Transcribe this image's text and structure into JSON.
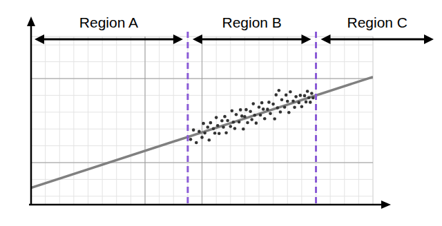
{
  "chart_data": {
    "type": "scatter",
    "xlim": [
      0,
      12
    ],
    "ylim": [
      0,
      10
    ],
    "xticks": [
      4,
      6
    ],
    "yticks": [
      2.5,
      7.5
    ],
    "grid": true,
    "tick_labels": false,
    "regions": [
      "Region A",
      "Region B",
      "Region C"
    ],
    "boundaries": {
      "values": [
        5.5,
        10
      ],
      "color": "#8a5bd6",
      "line_style": "dashed"
    },
    "series": [
      {
        "type": "scatter",
        "color": "#333333",
        "marker": "circle",
        "x": [
          5.6,
          5.7,
          5.8,
          5.9,
          6.0,
          6.05,
          6.1,
          6.2,
          6.25,
          6.3,
          6.4,
          6.45,
          6.5,
          6.55,
          6.6,
          6.7,
          6.75,
          6.8,
          6.85,
          6.9,
          7.0,
          7.05,
          7.1,
          7.15,
          7.2,
          7.3,
          7.35,
          7.4,
          7.45,
          7.5,
          7.55,
          7.6,
          7.7,
          7.75,
          7.8,
          7.85,
          7.9,
          8.0,
          8.05,
          8.1,
          8.15,
          8.2,
          8.3,
          8.35,
          8.4,
          8.5,
          8.55,
          8.6,
          8.65,
          8.7,
          8.75,
          8.8,
          8.9,
          8.95,
          9.0,
          9.05,
          9.1,
          9.2,
          9.25,
          9.3,
          9.4,
          9.45,
          9.5,
          9.6,
          9.65,
          9.7,
          9.75,
          9.8,
          9.85,
          9.9
        ],
        "values": [
          3.88,
          4.44,
          3.69,
          4.35,
          4.0,
          4.83,
          4.26,
          4.61,
          3.84,
          4.87,
          4.52,
          4.25,
          5.18,
          4.7,
          4.23,
          4.99,
          4.61,
          5.24,
          4.27,
          5.0,
          4.65,
          5.58,
          4.91,
          4.53,
          5.36,
          4.92,
          5.64,
          5.27,
          4.5,
          5.23,
          5.65,
          4.88,
          5.54,
          5.06,
          6.0,
          5.32,
          4.85,
          5.8,
          5.33,
          6.06,
          5.68,
          5.11,
          5.67,
          6.09,
          5.42,
          5.98,
          5.1,
          6.53,
          5.76,
          6.79,
          5.51,
          6.24,
          5.8,
          6.52,
          6.15,
          5.48,
          6.71,
          6.16,
          5.79,
          6.42,
          6.07,
          6.5,
          5.83,
          6.48,
          6.11,
          6.74,
          6.36,
          6.09,
          6.62,
          6.35
        ]
      },
      {
        "type": "line",
        "color": "#808080",
        "line_style": "solid",
        "x": [
          0,
          12
        ],
        "values": [
          1,
          7.6
        ]
      }
    ]
  }
}
